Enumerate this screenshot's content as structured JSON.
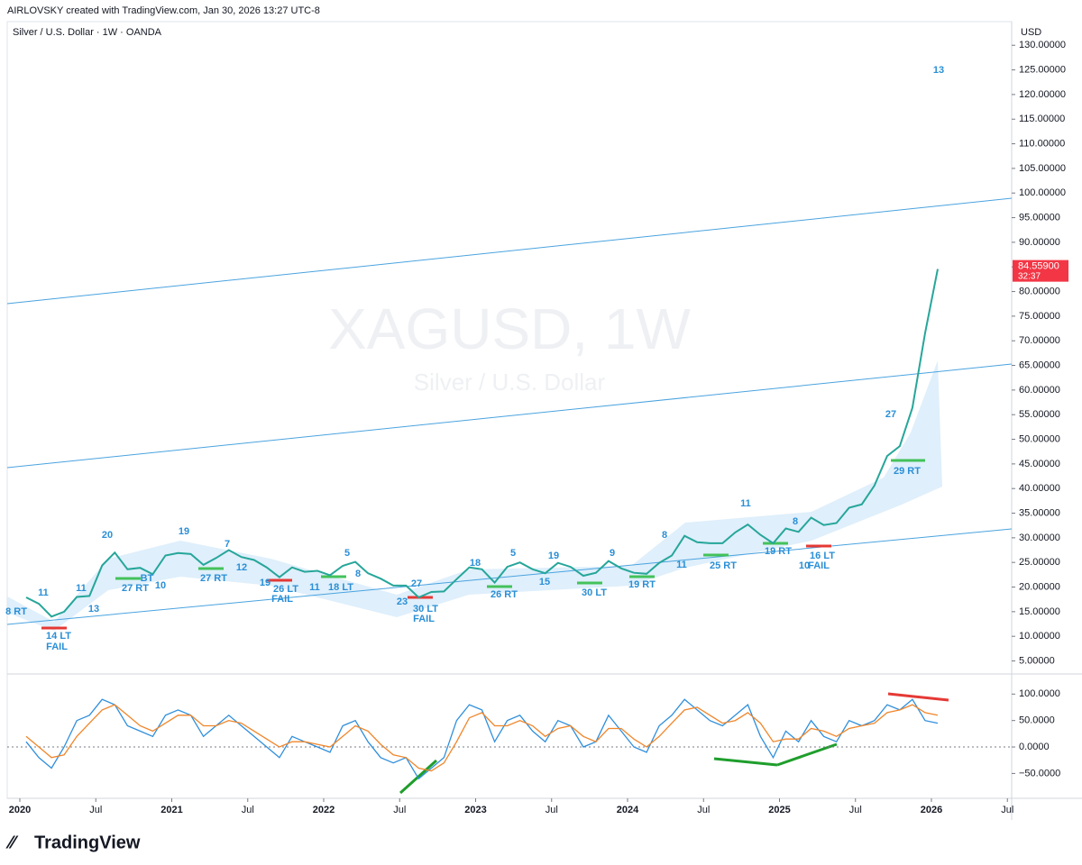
{
  "header": "AIRLOVSKY created with TradingView.com, Jan 30, 2026 13:27 UTC-8",
  "brand": "TradingView",
  "chart_data": [
    {
      "type": "line",
      "title": "Silver / U.S. Dollar · 1W · OANDA",
      "subtitle": "Silver / U.S. Dollar",
      "y_label": "USD",
      "x": [
        "2020-01",
        "2020-02",
        "2020-03",
        "2020-04",
        "2020-05",
        "2020-06",
        "2020-07",
        "2020-08",
        "2020-09",
        "2020-10",
        "2020-11",
        "2020-12",
        "2021-01",
        "2021-02",
        "2021-03",
        "2021-04",
        "2021-05",
        "2021-06",
        "2021-07",
        "2021-08",
        "2021-09",
        "2021-10",
        "2021-11",
        "2021-12",
        "2022-01",
        "2022-02",
        "2022-03",
        "2022-04",
        "2022-05",
        "2022-06",
        "2022-07",
        "2022-08",
        "2022-09",
        "2022-10",
        "2022-11",
        "2022-12",
        "2023-01",
        "2023-02",
        "2023-03",
        "2023-04",
        "2023-05",
        "2023-06",
        "2023-07",
        "2023-08",
        "2023-09",
        "2023-10",
        "2023-11",
        "2023-12",
        "2024-01",
        "2024-02",
        "2024-03",
        "2024-04",
        "2024-05",
        "2024-06",
        "2024-07",
        "2024-08",
        "2024-09",
        "2024-10",
        "2024-11",
        "2024-12",
        "2025-01",
        "2025-02",
        "2025-03",
        "2025-04",
        "2025-05",
        "2025-06",
        "2025-07",
        "2025-08",
        "2025-09",
        "2025-10",
        "2025-11",
        "2025-12",
        "2026-01"
      ],
      "series": [
        {
          "name": "XAGUSD, 1W",
          "color": "#26a69a",
          "values": [
            17.9,
            16.6,
            14.0,
            15.0,
            18.0,
            18.2,
            24.4,
            27.0,
            23.6,
            23.9,
            22.6,
            26.4,
            26.9,
            26.7,
            24.5,
            25.9,
            27.5,
            26.1,
            25.5,
            24.0,
            22.0,
            24.0,
            23.1,
            23.3,
            22.4,
            24.3,
            25.1,
            22.8,
            21.7,
            20.3,
            20.3,
            17.9,
            19.0,
            19.1,
            21.6,
            24.0,
            23.6,
            20.9,
            24.1,
            25.0,
            23.6,
            22.8,
            24.9,
            24.1,
            22.3,
            22.9,
            25.3,
            23.8,
            22.9,
            22.7,
            24.9,
            26.4,
            30.4,
            29.1,
            28.9,
            28.9,
            31.1,
            32.7,
            30.6,
            28.9,
            31.9,
            31.2,
            34.1,
            32.6,
            33.0,
            36.1,
            36.8,
            40.6,
            46.6,
            48.6,
            56.4,
            71.6,
            84.559
          ]
        }
      ],
      "last_price": {
        "value": 84.559,
        "label": "84.55900"
      },
      "countdown": "32:37",
      "ylim": [
        2.9,
        134.8
      ],
      "yticks": [
        {
          "value": 5,
          "label": "5.00000"
        },
        {
          "value": 10,
          "label": "10.00000"
        },
        {
          "value": 15,
          "label": "15.00000"
        },
        {
          "value": 20,
          "label": "20.00000"
        },
        {
          "value": 25,
          "label": "25.00000"
        },
        {
          "value": 30,
          "label": "30.00000"
        },
        {
          "value": 35,
          "label": "35.00000"
        },
        {
          "value": 40,
          "label": "40.00000"
        },
        {
          "value": 45,
          "label": "45.00000"
        },
        {
          "value": 50,
          "label": "50.00000"
        },
        {
          "value": 55,
          "label": "55.00000"
        },
        {
          "value": 60,
          "label": "60.00000"
        },
        {
          "value": 65,
          "label": "65.00000"
        },
        {
          "value": 70,
          "label": "70.00000"
        },
        {
          "value": 75,
          "label": "75.00000"
        },
        {
          "value": 80,
          "label": "80.00000"
        },
        {
          "value": 85,
          "label": "85.00000"
        },
        {
          "value": 90,
          "label": "90.00000"
        },
        {
          "value": 95,
          "label": "95.00000"
        },
        {
          "value": 100,
          "label": "100.00000"
        },
        {
          "value": 105,
          "label": "105.00000"
        },
        {
          "value": 110,
          "label": "110.00000"
        },
        {
          "value": 115,
          "label": "115.00000"
        },
        {
          "value": 120,
          "label": "120.00000"
        },
        {
          "value": 125,
          "label": "125.00000"
        },
        {
          "value": 130,
          "label": "130.00000"
        }
      ],
      "annotations": [
        "11",
        "14 LT",
        "FAIL",
        "8 RT",
        "13",
        "11",
        "20",
        "27 RT",
        "BT",
        "10",
        "19",
        "27 RT",
        "7",
        "12",
        "19",
        "26 LT",
        "FAIL",
        "11",
        "18 LT",
        "5",
        "8",
        "23",
        "27",
        "30 LT",
        "FAIL",
        "18",
        "5",
        "26 RT",
        "19",
        "15",
        "9",
        "30 LT",
        "19 RT",
        "8",
        "11",
        "25 RT",
        "11",
        "19 RT",
        "8",
        "10",
        "16 LT",
        "FAIL",
        "27",
        "29 RT",
        "13"
      ]
    },
    {
      "type": "line",
      "x": [
        "2020-01",
        "2020-02",
        "2020-03",
        "2020-04",
        "2020-05",
        "2020-06",
        "2020-07",
        "2020-08",
        "2020-09",
        "2020-10",
        "2020-11",
        "2020-12",
        "2021-01",
        "2021-02",
        "2021-03",
        "2021-04",
        "2021-05",
        "2021-06",
        "2021-07",
        "2021-08",
        "2021-09",
        "2021-10",
        "2021-11",
        "2021-12",
        "2022-01",
        "2022-02",
        "2022-03",
        "2022-04",
        "2022-05",
        "2022-06",
        "2022-07",
        "2022-08",
        "2022-09",
        "2022-10",
        "2022-11",
        "2022-12",
        "2023-01",
        "2023-02",
        "2023-03",
        "2023-04",
        "2023-05",
        "2023-06",
        "2023-07",
        "2023-08",
        "2023-09",
        "2023-10",
        "2023-11",
        "2023-12",
        "2024-01",
        "2024-02",
        "2024-03",
        "2024-04",
        "2024-05",
        "2024-06",
        "2024-07",
        "2024-08",
        "2024-09",
        "2024-10",
        "2024-11",
        "2024-12",
        "2025-01",
        "2025-02",
        "2025-03",
        "2025-04",
        "2025-05",
        "2025-06",
        "2025-07",
        "2025-08",
        "2025-09",
        "2025-10",
        "2025-11",
        "2025-12",
        "2026-01"
      ],
      "series": [
        {
          "color": "#2f8fdc",
          "values": [
            10,
            -20,
            -40,
            0,
            50,
            60,
            90,
            80,
            40,
            30,
            20,
            60,
            70,
            60,
            20,
            40,
            60,
            40,
            20,
            0,
            -20,
            20,
            10,
            0,
            -10,
            40,
            50,
            10,
            -20,
            -30,
            -20,
            -60,
            -40,
            -20,
            50,
            80,
            70,
            10,
            50,
            60,
            30,
            10,
            50,
            40,
            0,
            10,
            60,
            30,
            0,
            -10,
            40,
            60,
            90,
            70,
            50,
            40,
            60,
            80,
            20,
            -20,
            30,
            10,
            50,
            20,
            10,
            50,
            40,
            50,
            80,
            70,
            90,
            50,
            45
          ]
        },
        {
          "color": "#f0862a",
          "values": [
            20,
            0,
            -20,
            -15,
            20,
            45,
            70,
            80,
            60,
            40,
            30,
            45,
            60,
            60,
            40,
            40,
            50,
            45,
            30,
            15,
            0,
            10,
            10,
            5,
            0,
            20,
            40,
            30,
            5,
            -15,
            -20,
            -40,
            -45,
            -30,
            10,
            55,
            65,
            40,
            40,
            50,
            40,
            20,
            35,
            40,
            20,
            10,
            35,
            35,
            15,
            0,
            20,
            45,
            70,
            75,
            60,
            45,
            50,
            65,
            45,
            10,
            15,
            15,
            35,
            30,
            20,
            35,
            40,
            45,
            65,
            70,
            80,
            65,
            60
          ]
        }
      ],
      "zero_line": true,
      "ylim": [
        -97,
        138
      ],
      "yticks": [
        {
          "value": 100,
          "label": "100.0000"
        },
        {
          "value": 50,
          "label": "50.0000"
        },
        {
          "value": 0,
          "label": "0.0000"
        },
        {
          "value": -50,
          "label": "−50.0000"
        }
      ],
      "xticks": [
        {
          "value": "2020-01",
          "label": "2020"
        },
        {
          "value": "2020-07",
          "label": "Jul"
        },
        {
          "value": "2021-01",
          "label": "2021"
        },
        {
          "value": "2021-07",
          "label": "Jul"
        },
        {
          "value": "2022-01",
          "label": "2022"
        },
        {
          "value": "2022-07",
          "label": "Jul"
        },
        {
          "value": "2023-01",
          "label": "2023"
        },
        {
          "value": "2023-07",
          "label": "Jul"
        },
        {
          "value": "2024-01",
          "label": "2024"
        },
        {
          "value": "2024-07",
          "label": "Jul"
        },
        {
          "value": "2025-01",
          "label": "2025"
        },
        {
          "value": "2025-07",
          "label": "Jul"
        },
        {
          "value": "2026-01",
          "label": "2026"
        },
        {
          "value": "2026-07",
          "label": "Jul"
        }
      ]
    }
  ]
}
